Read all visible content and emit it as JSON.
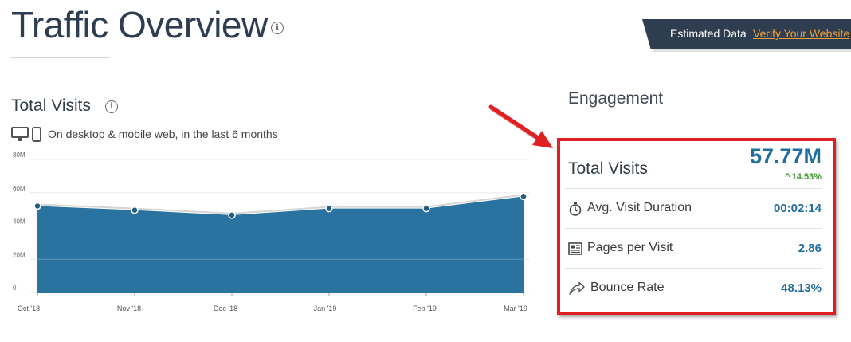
{
  "header": {
    "title": "Traffic Overview",
    "banner_text": "Estimated Data",
    "banner_link": "Verify Your Website"
  },
  "total_visits_section": {
    "title": "Total Visits",
    "device_text": "On desktop & mobile web, in the last 6 months"
  },
  "engagement": {
    "title": "Engagement",
    "total_visits": {
      "label": "Total Visits",
      "value": "57.77M",
      "change": "14.53%",
      "change_direction": "up"
    },
    "metrics": [
      {
        "label": "Avg. Visit Duration",
        "value": "00:02:14",
        "icon": "stopwatch-icon"
      },
      {
        "label": "Pages per Visit",
        "value": "2.86",
        "icon": "pages-icon"
      },
      {
        "label": "Bounce Rate",
        "value": "48.13%",
        "icon": "bounce-arrow-icon"
      }
    ]
  },
  "colors": {
    "area_fill": "#2a73a0",
    "accent_blue": "#1f6e9e",
    "positive_green": "#3f9a2f",
    "highlight_red": "#e02020",
    "banner_bg": "#2e3d4f",
    "link_orange": "#f0a23a"
  },
  "chart_data": {
    "type": "area",
    "categories": [
      "Oct '18",
      "Nov '18",
      "Dec '18",
      "Jan '19",
      "Feb '19",
      "Mar '19"
    ],
    "series": [
      {
        "values": [
          52,
          49.5,
          46.5,
          50.5,
          50.5,
          57.8
        ]
      }
    ],
    "yticks": [
      "80M",
      "60M",
      "40M",
      "20M",
      "0"
    ],
    "ylim": [
      0,
      80
    ],
    "grid": true,
    "legend": "none"
  }
}
